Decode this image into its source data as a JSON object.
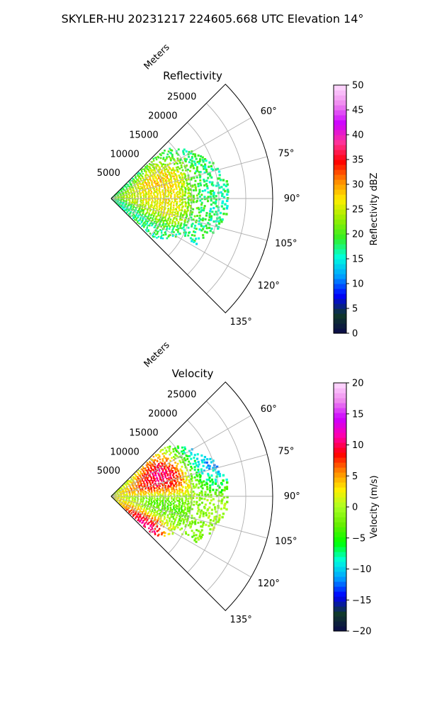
{
  "figure": {
    "suptitle": "SKYLER-HU  20231217  224605.668 UTC Elevation 14°"
  },
  "chart_data": [
    {
      "type": "heatmap",
      "subtype": "polar-sector (PPI radar scan)",
      "title": "Reflectivity",
      "radial_axis_label": "Meters",
      "radial_ticks": [
        "5000",
        "10000",
        "15000",
        "20000",
        "25000"
      ],
      "radial_tick_values": [
        5000,
        10000,
        15000,
        20000,
        25000
      ],
      "radial_limit": [
        0,
        30000
      ],
      "angular_limit_deg": [
        45,
        135
      ],
      "angular_ticks": [
        "60°",
        "75°",
        "90°",
        "105°",
        "120°",
        "135°"
      ],
      "angular_tick_values": [
        60,
        75,
        90,
        105,
        120,
        135
      ],
      "grid": true,
      "data_extent": {
        "azimuth_deg": [
          47,
          133
        ],
        "range_m": [
          0,
          22000
        ]
      },
      "features": [
        {
          "azimuth_deg": 70,
          "range_m": 9000,
          "value": 32
        },
        {
          "azimuth_deg": 96,
          "range_m": 9500,
          "value": 30
        },
        {
          "azimuth_deg": 85,
          "range_m": 5000,
          "value": 26
        }
      ],
      "colorbar": {
        "label": "Reflectivity dBZ",
        "limits": [
          0,
          50
        ],
        "ticks": [
          "0",
          "5",
          "10",
          "15",
          "20",
          "25",
          "30",
          "35",
          "40",
          "45",
          "50"
        ],
        "tick_values": [
          0,
          5,
          10,
          15,
          20,
          25,
          30,
          35,
          40,
          45,
          50
        ],
        "colors": [
          "#0b0b4a",
          "#103a2a",
          "#0000ff",
          "#00a0ff",
          "#00ffdd",
          "#33ee22",
          "#99ee00",
          "#ffee00",
          "#ff8800",
          "#ff0000",
          "#ff3399",
          "#cc00ff",
          "#ee88ee",
          "#ffddff"
        ]
      }
    },
    {
      "type": "heatmap",
      "subtype": "polar-sector (PPI radar scan)",
      "title": "Velocity",
      "radial_axis_label": "Meters",
      "radial_ticks": [
        "5000",
        "10000",
        "15000",
        "20000",
        "25000"
      ],
      "radial_tick_values": [
        5000,
        10000,
        15000,
        20000,
        25000
      ],
      "radial_limit": [
        0,
        30000
      ],
      "angular_limit_deg": [
        45,
        135
      ],
      "angular_ticks": [
        "60°",
        "75°",
        "90°",
        "105°",
        "120°",
        "135°"
      ],
      "angular_tick_values": [
        60,
        75,
        90,
        105,
        120,
        135
      ],
      "grid": true,
      "data_extent": {
        "azimuth_deg": [
          47,
          133
        ],
        "range_m": [
          0,
          22000
        ]
      },
      "features": [
        {
          "azimuth_deg": 65,
          "range_m": 11000,
          "value": 15
        },
        {
          "azimuth_deg": 78,
          "range_m": 8000,
          "value": 10
        },
        {
          "azimuth_deg": 58,
          "range_m": 17000,
          "value": -11
        },
        {
          "azimuth_deg": 66,
          "range_m": 20000,
          "value": -16
        },
        {
          "azimuth_deg": 100,
          "range_m": 8000,
          "value": -8
        },
        {
          "azimuth_deg": 108,
          "range_m": 4000,
          "value": 5
        },
        {
          "azimuth_deg": 128,
          "range_m": 9000,
          "value": 16
        },
        {
          "azimuth_deg": 115,
          "range_m": 14000,
          "value": -3
        }
      ],
      "colorbar": {
        "label": "Velocity (m/s)",
        "limits": [
          -20,
          20
        ],
        "ticks": [
          "−20",
          "−15",
          "−10",
          "−5",
          "0",
          "5",
          "10",
          "15",
          "20"
        ],
        "tick_values": [
          -20,
          -15,
          -10,
          -5,
          0,
          5,
          10,
          15,
          20
        ],
        "colors": [
          "#0b0b4a",
          "#103a2a",
          "#0000ff",
          "#00a0ff",
          "#00ffdd",
          "#00ff00",
          "#66ee00",
          "#aaff22",
          "#ffee00",
          "#ff8800",
          "#ff0000",
          "#ff00aa",
          "#cc00ff",
          "#ee88ee",
          "#ffddff"
        ]
      }
    }
  ]
}
